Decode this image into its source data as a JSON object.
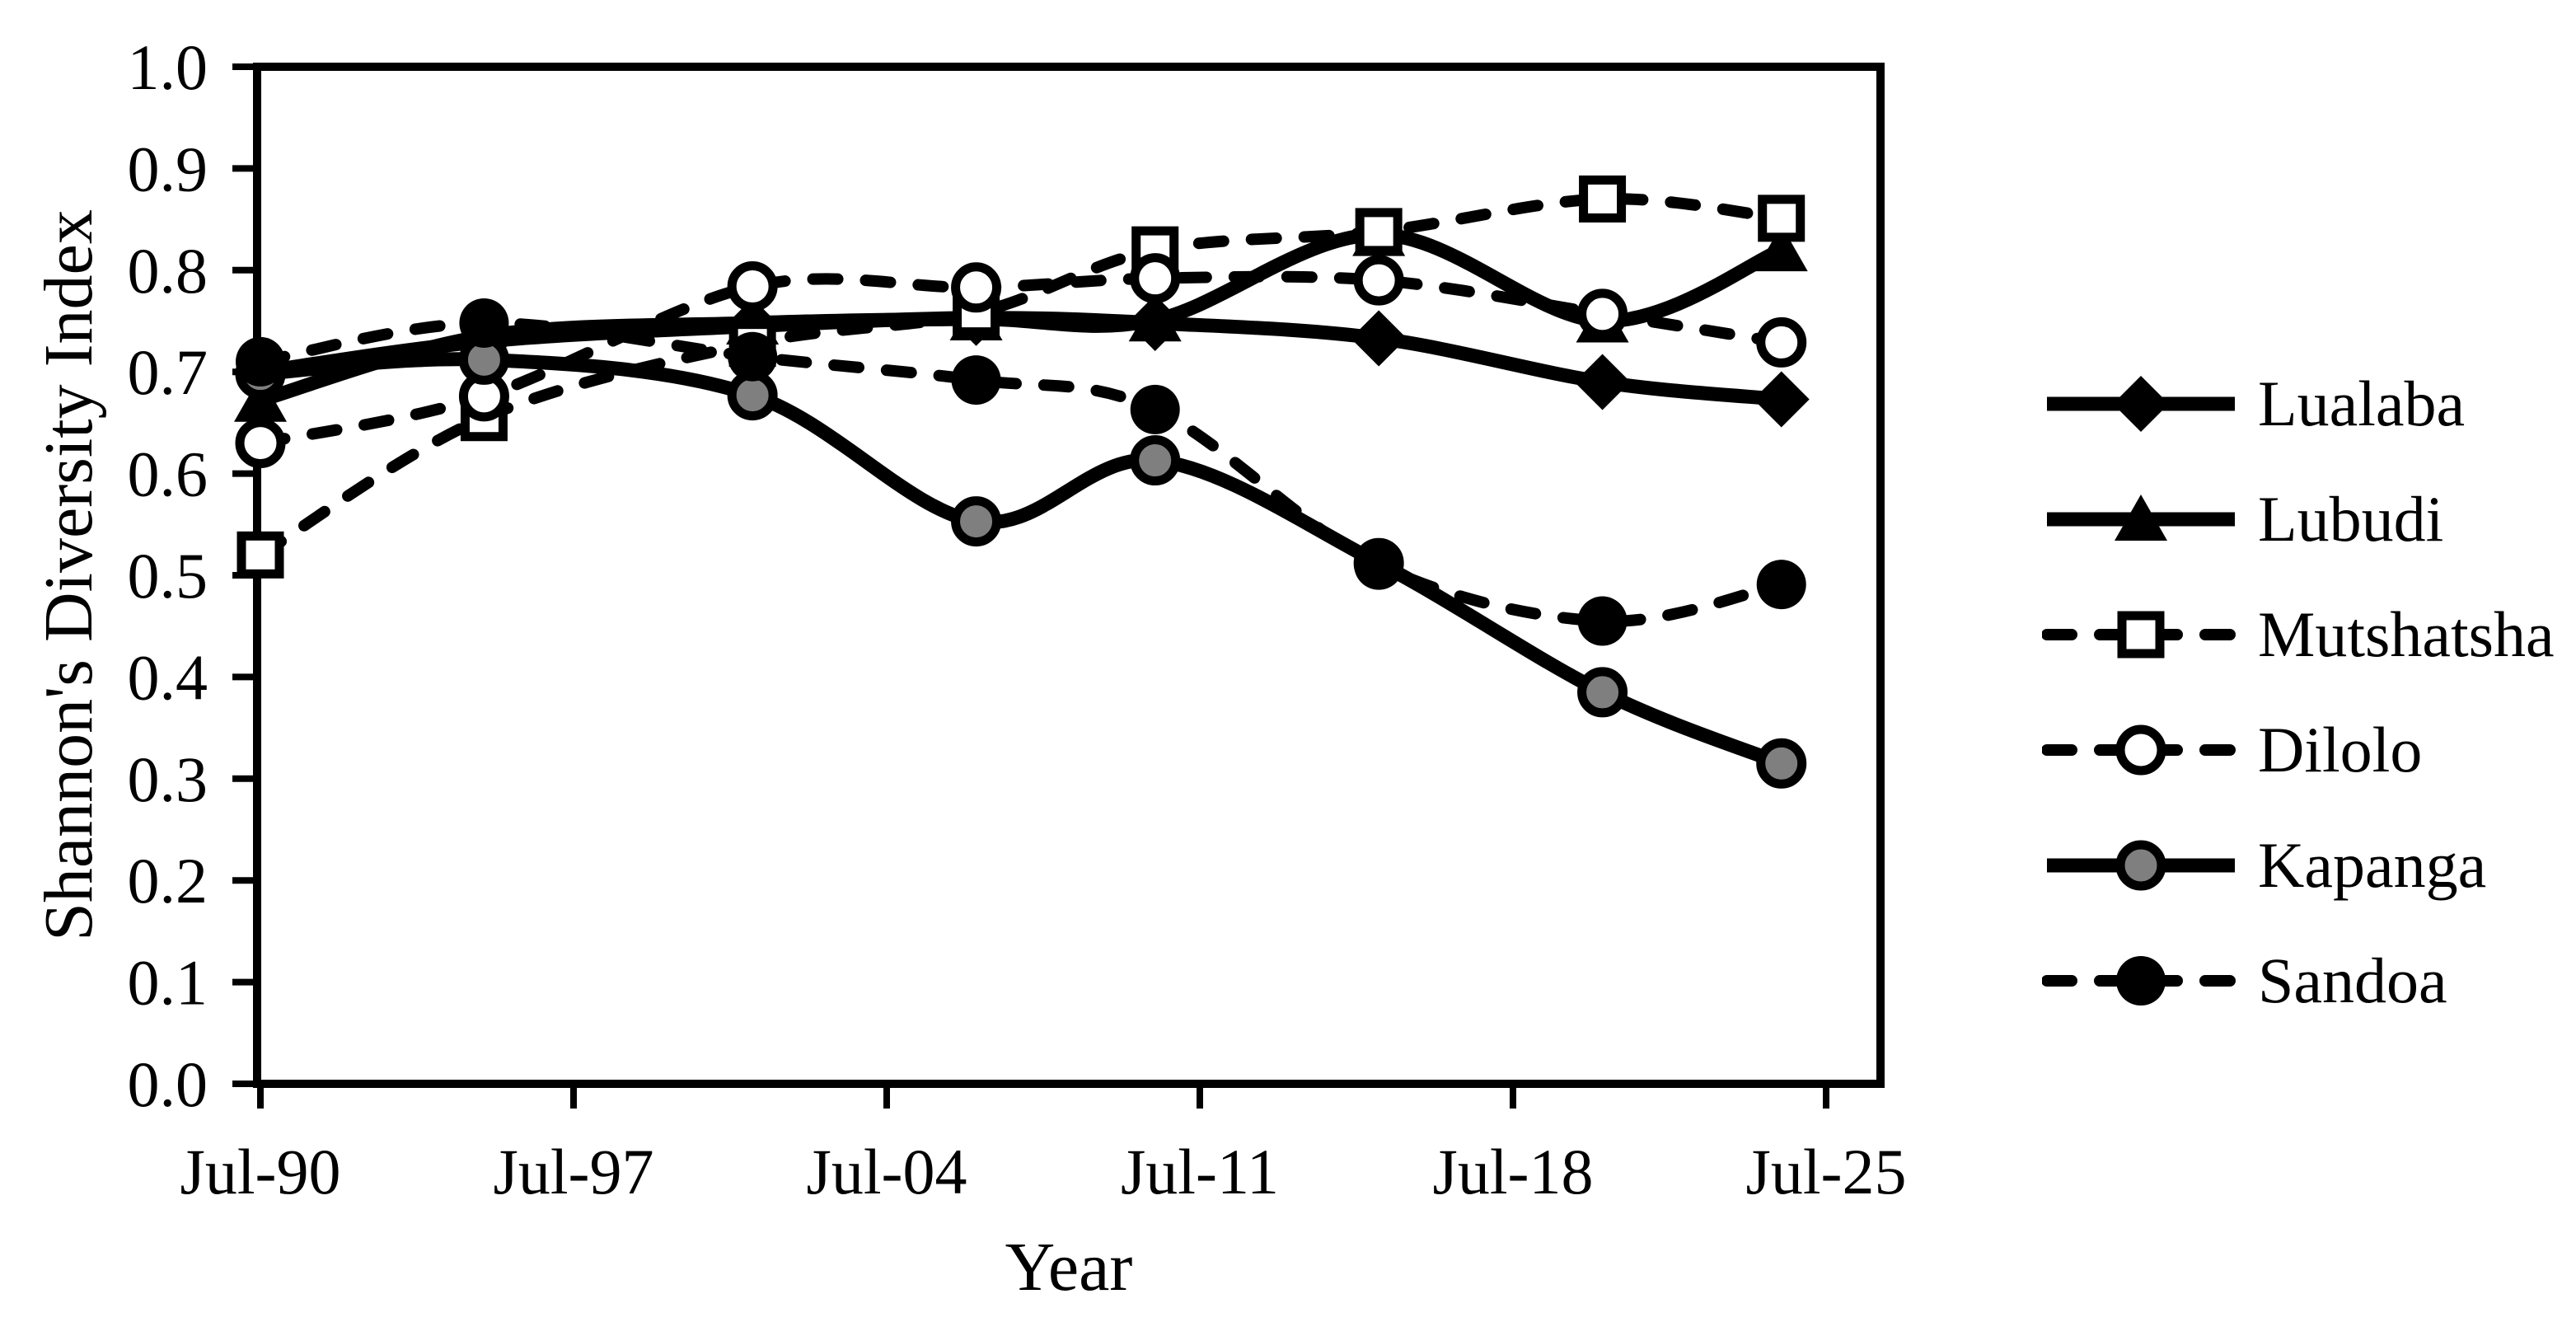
{
  "figure": {
    "background": "#ffffff",
    "line_color": "#000000",
    "gray_fill": "#7f7f7f",
    "open_marker_fill": "#ffffff"
  },
  "chart_data": {
    "type": "line",
    "title": "",
    "xlabel": "Year",
    "ylabel": "Shannon's Diversity Index",
    "grid": "off",
    "legend_position": "right",
    "ylim": [
      0.0,
      1.0
    ],
    "y_tick_step": 0.1,
    "y_tick_labels": [
      "0.0",
      "0.1",
      "0.2",
      "0.3",
      "0.4",
      "0.5",
      "0.6",
      "0.7",
      "0.8",
      "0.9",
      "1.0"
    ],
    "y_tick_values": [
      0.0,
      0.1,
      0.2,
      0.3,
      0.4,
      0.5,
      0.6,
      0.7,
      0.8,
      0.9,
      1.0
    ],
    "x_tick_labels": [
      "Jul-90",
      "Jul-97",
      "Jul-04",
      "Jul-11",
      "Jul-18",
      "Jul-25"
    ],
    "x_tick_years": [
      1990,
      1997,
      2004,
      2011,
      2018,
      2025
    ],
    "x_years": [
      1990,
      1995,
      2001,
      2006,
      2010,
      2015,
      2020,
      2024
    ],
    "series": [
      {
        "name": "Lualaba",
        "line": "solid",
        "marker": "diamond",
        "marker_fill": "#000000",
        "values": [
          0.7,
          0.73,
          0.745,
          0.753,
          0.748,
          0.733,
          0.69,
          0.673
        ]
      },
      {
        "name": "Lubudi",
        "line": "solid",
        "marker": "triangle",
        "marker_fill": "#000000",
        "values": [
          0.672,
          0.735,
          0.748,
          0.752,
          0.751,
          0.835,
          0.75,
          0.82
        ]
      },
      {
        "name": "Mutshatsha",
        "line": "dashed",
        "marker": "square",
        "marker_fill": "#ffffff",
        "values": [
          0.52,
          0.655,
          0.728,
          0.758,
          0.82,
          0.838,
          0.87,
          0.851
        ]
      },
      {
        "name": "Dilolo",
        "line": "dashed",
        "marker": "circle",
        "marker_fill": "#ffffff",
        "values": [
          0.63,
          0.676,
          0.784,
          0.783,
          0.792,
          0.79,
          0.757,
          0.729
        ]
      },
      {
        "name": "Kapanga",
        "line": "solid",
        "marker": "circle",
        "marker_fill": "#7f7f7f",
        "values": [
          0.698,
          0.712,
          0.677,
          0.553,
          0.613,
          0.512,
          0.385,
          0.315
        ]
      },
      {
        "name": "Sandoa",
        "line": "dashed",
        "marker": "circle",
        "marker_fill": "#000000",
        "values": [
          0.71,
          0.748,
          0.715,
          0.692,
          0.663,
          0.51,
          0.455,
          0.491
        ]
      }
    ]
  }
}
